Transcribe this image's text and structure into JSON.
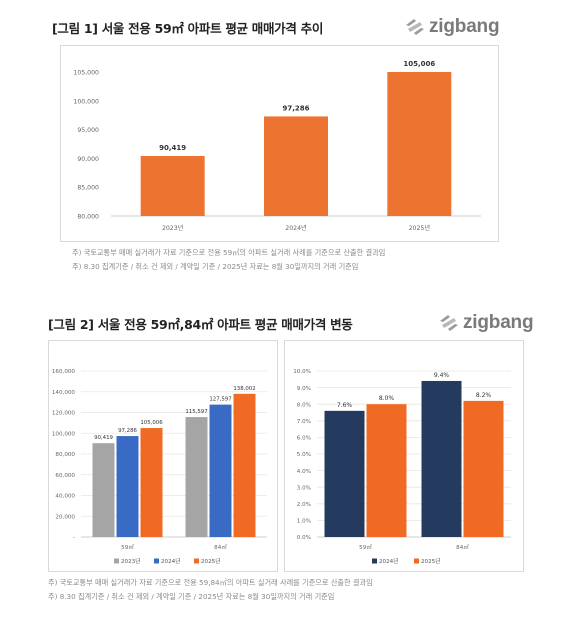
{
  "figure1": {
    "title": "[그림 1] 서울 전용 59㎡ 아파트 평균 매매가격 추이",
    "logo": "zigbang",
    "notes": [
      "주) 국토교통부 매매 실거래가 자료 기준으로 전용 59㎡의 아파트 실거래 사례를 기준으로 산출한 결과임",
      "주) 8.30 집계기준 / 취소 건 제외 / 계약일 기준 / 2025년 자료는 8월 30일까지의 거래 기준임"
    ]
  },
  "figure2": {
    "title": "[그림 2] 서울 전용 59㎡,84㎡ 아파트 평균 매매가격 변동",
    "logo": "zigbang",
    "notes": [
      "주) 국토교통부 매매 실거래가 자료 기준으로 전용 59,84㎡의 아파트 실거래 사례를 기준으로 산출한 결과임",
      "주) 8.30 집계기준 / 취소 건 제외 / 계약일 기준 / 2025년 자료는 8월 30일까지의 거래 기준임"
    ]
  },
  "chart_data": [
    {
      "type": "bar",
      "categories": [
        "2023년",
        "2024년",
        "2025년"
      ],
      "values": [
        90419,
        97286,
        105006
      ],
      "data_labels": [
        "90,419",
        "97,286",
        "105,006"
      ],
      "ylim": [
        80000,
        105000
      ],
      "yticks": [
        "80,000",
        "85,000",
        "90,000",
        "95,000",
        "100,000",
        "105,000"
      ],
      "ytick_values": [
        80000,
        85000,
        90000,
        95000,
        100000,
        105000
      ],
      "grid": false,
      "colors": [
        "#ed7331"
      ]
    },
    {
      "type": "bar",
      "categories": [
        "59㎡",
        "84㎡"
      ],
      "series": [
        {
          "name": "2023년",
          "values": [
            90419,
            115597
          ],
          "labels": [
            "90,419",
            "115,597"
          ],
          "color": "#a5a5a5"
        },
        {
          "name": "2024년",
          "values": [
            97286,
            127597
          ],
          "labels": [
            "97,286",
            "127,597"
          ],
          "color": "#3a6bc4"
        },
        {
          "name": "2025년",
          "values": [
            105006,
            138002
          ],
          "labels": [
            "105,006",
            "138,002"
          ],
          "color": "#f06a23"
        }
      ],
      "ylim": [
        0,
        160000
      ],
      "yticks": [
        "-",
        "20,000",
        "40,000",
        "60,000",
        "80,000",
        "100,000",
        "120,000",
        "140,000",
        "160,000"
      ],
      "ytick_values": [
        0,
        20000,
        40000,
        60000,
        80000,
        100000,
        120000,
        140000,
        160000
      ],
      "grid": true,
      "legend_position": "bottom"
    },
    {
      "type": "bar",
      "categories": [
        "59㎡",
        "84㎡"
      ],
      "series": [
        {
          "name": "2024년",
          "values": [
            7.6,
            9.4
          ],
          "labels": [
            "7.6%",
            "9.4%"
          ],
          "color": "#243a5e"
        },
        {
          "name": "2025년",
          "values": [
            8.0,
            8.2
          ],
          "labels": [
            "8.0%",
            "8.2%"
          ],
          "color": "#f06a23"
        }
      ],
      "ylim": [
        0,
        10
      ],
      "yticks": [
        "0.0%",
        "1.0%",
        "2.0%",
        "3.0%",
        "4.0%",
        "5.0%",
        "6.0%",
        "7.0%",
        "8.0%",
        "9.0%",
        "10.0%"
      ],
      "ytick_values": [
        0,
        1,
        2,
        3,
        4,
        5,
        6,
        7,
        8,
        9,
        10
      ],
      "grid": true,
      "legend_position": "bottom"
    }
  ]
}
